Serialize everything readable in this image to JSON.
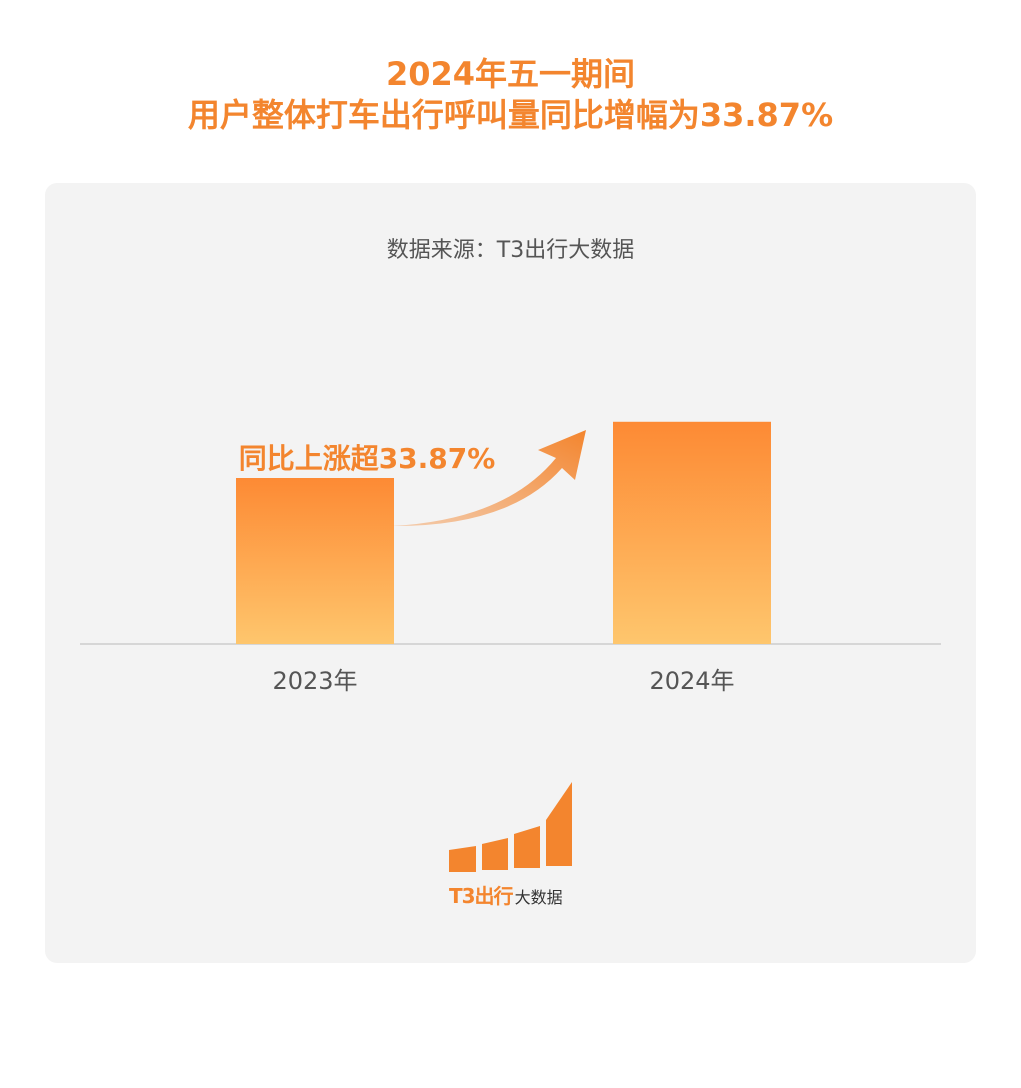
{
  "title": {
    "line1": "2024年五一期间",
    "line2": "用户整体打车出行呼叫量同比增幅为33.87%"
  },
  "source_label": "数据来源：T3出行大数据",
  "colors": {
    "accent": "#f3852e",
    "bar_top": "#fd8a34",
    "bar_bottom": "#fec66d",
    "card_bg": "#f3f3f3"
  },
  "chart_data": {
    "type": "bar",
    "categories": [
      "2023年",
      "2024年"
    ],
    "values": [
      1.0,
      1.3387
    ],
    "annotation": "同比上涨超33.87%",
    "grid": false,
    "legend": "none"
  },
  "logo": {
    "brand": "T3出行",
    "suffix": "大数据"
  }
}
